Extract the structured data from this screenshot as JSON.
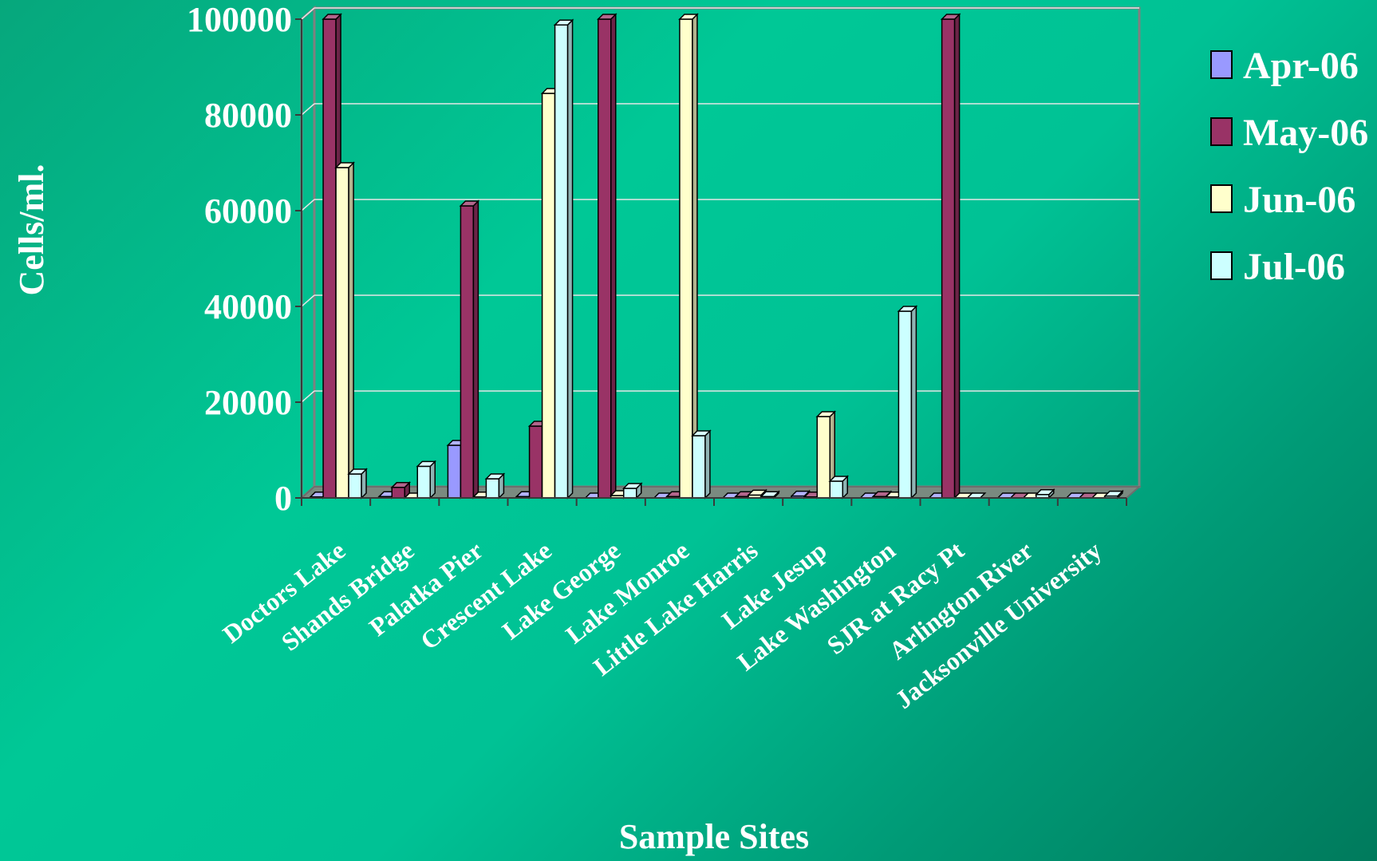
{
  "chart_data": {
    "type": "bar",
    "title": "",
    "xlabel": "Sample Sites",
    "ylabel": "Cells/ml.",
    "ylim": [
      0,
      100000
    ],
    "yticks": [
      0,
      20000,
      40000,
      60000,
      80000,
      100000
    ],
    "yticks_labels": [
      "0",
      "20000",
      "40000",
      "60000",
      "80000",
      "100000"
    ],
    "grid": true,
    "legend_position": "right",
    "categories": [
      "Doctors Lake",
      "Shands Bridge",
      "Palatka Pier",
      "Crescent Lake",
      "Lake George",
      "Lake Monroe",
      "Little Lake Harris",
      "Lake Jesup",
      "Lake Washington",
      "SJR at Racy Pt",
      "Arlington River",
      "Jacksonville University"
    ],
    "series": [
      {
        "name": "Apr-06",
        "color": "#9999ff",
        "values": [
          200,
          300,
          11000,
          300,
          0,
          0,
          0,
          400,
          0,
          0,
          0,
          0
        ]
      },
      {
        "name": "May-06",
        "color": "#993366",
        "values": [
          100000,
          2200,
          61000,
          15000,
          100000,
          300,
          300,
          200,
          300,
          100000,
          0,
          0
        ]
      },
      {
        "name": "Jun-06",
        "color": "#ffffcc",
        "values": [
          69000,
          0,
          200,
          84500,
          500,
          100000,
          600,
          17000,
          200,
          0,
          0,
          0
        ]
      },
      {
        "name": "Jul-06",
        "color": "#ccffff",
        "values": [
          5000,
          6600,
          4000,
          98800,
          2000,
          13000,
          300,
          3500,
          39000,
          0,
          700,
          400
        ]
      }
    ]
  }
}
